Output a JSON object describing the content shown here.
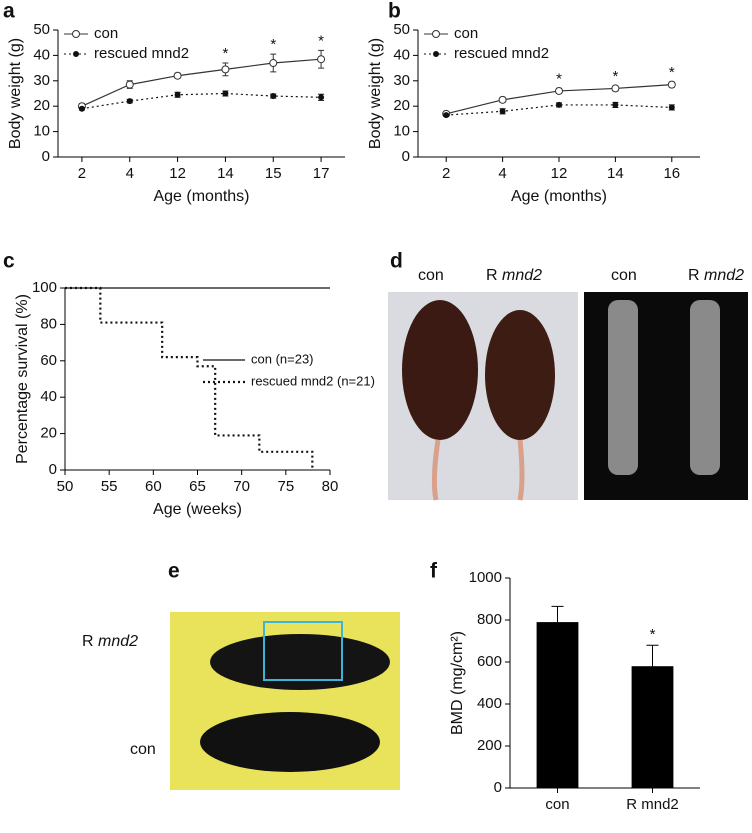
{
  "chart_data": [
    {
      "type": "line",
      "panel": "a",
      "xlabel": "Age (months)",
      "ylabel": "Body weight (g)",
      "categories": [
        "2",
        "4",
        "12",
        "14",
        "15",
        "17"
      ],
      "ylim": [
        0,
        50
      ],
      "yticks": [
        0,
        10,
        20,
        30,
        40,
        50
      ],
      "legend": "upper left",
      "series": [
        {
          "name": "con",
          "color": "#333333",
          "dash": "solid",
          "marker": "open",
          "values": [
            20,
            28.5,
            32,
            34.5,
            37,
            38.5
          ],
          "errors": [
            1,
            1.5,
            1,
            2.5,
            3.5,
            3.5
          ]
        },
        {
          "name": "rescued mnd2",
          "color": "#111111",
          "dash": "dotted",
          "marker": "filled",
          "values": [
            19,
            22,
            24.5,
            25,
            24,
            23.5
          ],
          "errors": [
            0.5,
            0.7,
            1,
            1,
            0.8,
            1.2
          ]
        }
      ],
      "significance": [
        null,
        null,
        null,
        "*",
        "*",
        "*"
      ]
    },
    {
      "type": "line",
      "panel": "b",
      "xlabel": "Age (months)",
      "ylabel": "Body weight (g)",
      "categories": [
        "2",
        "4",
        "12",
        "14",
        "16"
      ],
      "ylim": [
        0,
        50
      ],
      "yticks": [
        0,
        10,
        20,
        30,
        40,
        50
      ],
      "legend": "upper left",
      "series": [
        {
          "name": "con",
          "color": "#333333",
          "dash": "solid",
          "marker": "open",
          "values": [
            17,
            22.5,
            26,
            27,
            28.5
          ],
          "errors": [
            0.8,
            1,
            1,
            1,
            1
          ]
        },
        {
          "name": "rescued mnd2",
          "color": "#111111",
          "dash": "dotted",
          "marker": "filled",
          "values": [
            16.5,
            18,
            20.5,
            20.5,
            19.5
          ],
          "errors": [
            0.5,
            1,
            0.8,
            1,
            1
          ]
        }
      ],
      "significance": [
        null,
        null,
        "*",
        "*",
        "*"
      ]
    },
    {
      "type": "step",
      "panel": "c",
      "xlabel": "Age (weeks)",
      "ylabel": "Percentage survival (%)",
      "xlim": [
        50,
        80
      ],
      "xticks": [
        50,
        55,
        60,
        65,
        70,
        75,
        80
      ],
      "ylim": [
        0,
        100
      ],
      "yticks": [
        0,
        20,
        40,
        60,
        80,
        100
      ],
      "legend": "center right",
      "series": [
        {
          "name": "con (n=23)",
          "color": "#111111",
          "dash": "solid",
          "x": [
            50,
            80
          ],
          "values": [
            100,
            100
          ]
        },
        {
          "name": "rescued mnd2 (n=21)",
          "color": "#111111",
          "dash": "dotted",
          "x": [
            50,
            54,
            61,
            65,
            67,
            72,
            78
          ],
          "values": [
            100,
            81,
            62,
            57,
            19,
            10,
            0
          ]
        }
      ]
    },
    {
      "type": "bar",
      "panel": "f",
      "ylabel": "BMD (mg/cm²)",
      "color": "#000000",
      "categories": [
        "con",
        "R mnd2"
      ],
      "values": [
        790,
        580
      ],
      "errors": [
        75,
        100
      ],
      "significance": [
        null,
        "*"
      ],
      "ylim": [
        0,
        1000
      ],
      "yticks": [
        0,
        200,
        400,
        600,
        800,
        1000
      ]
    }
  ],
  "photos": [
    {
      "panel": "d",
      "captions": [
        "con",
        "R",
        "mnd2",
        "con",
        "R",
        "mnd2"
      ]
    },
    {
      "panel": "e",
      "captions": [
        "R",
        "mnd2",
        "con"
      ]
    }
  ]
}
